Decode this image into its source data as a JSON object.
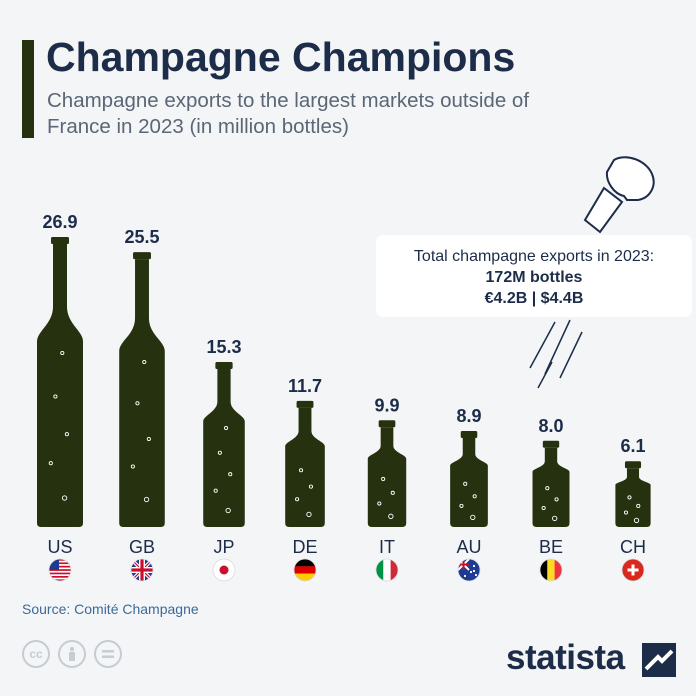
{
  "title": "Champagne Champions",
  "subtitle": "Champagne exports to the largest markets outside of France in 2023 (in million bottles)",
  "info_box": {
    "line1": "Total champagne exports in 2023:",
    "line2": "172M bottles",
    "line3": "€4.2B | $4.4B"
  },
  "source": "Source: Comité Champagne",
  "brand": "statista",
  "colors": {
    "bottle": "#26310f",
    "text_dark": "#1c2c49",
    "subtitle": "#5b6676",
    "background": "#f3f5f6"
  },
  "chart_data": {
    "type": "bar",
    "title": "Champagne Champions",
    "categories": [
      "US",
      "GB",
      "JP",
      "DE",
      "IT",
      "AU",
      "BE",
      "CH"
    ],
    "values": [
      26.9,
      25.5,
      15.3,
      11.7,
      9.9,
      8.9,
      8.0,
      6.1
    ],
    "value_labels": [
      "26.9",
      "25.5",
      "15.3",
      "11.7",
      "9.9",
      "8.9",
      "8.0",
      "6.1"
    ],
    "flags": [
      "us-flag-icon",
      "gb-flag-icon",
      "jp-flag-icon",
      "de-flag-icon",
      "it-flag-icon",
      "au-flag-icon",
      "be-flag-icon",
      "ch-flag-icon"
    ],
    "mark_shape": "champagne-bottle"
  }
}
